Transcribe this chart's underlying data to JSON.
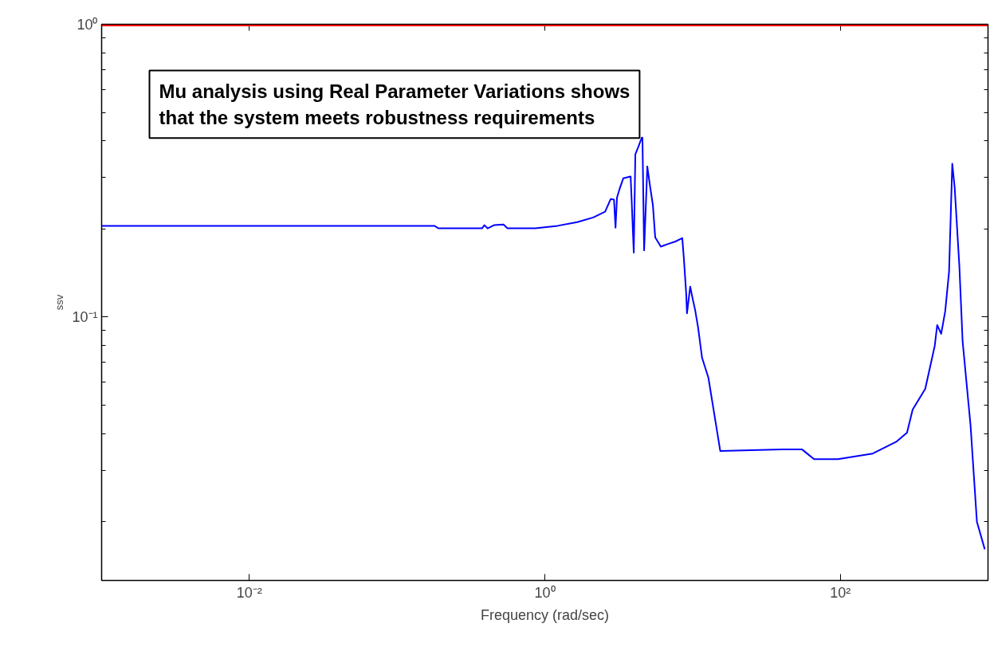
{
  "chart_data": {
    "type": "line",
    "xlabel": "Frequency (rad/sec)",
    "ylabel": "ssv",
    "log": "xy",
    "grid": false,
    "marker": "none",
    "line_style": "solid",
    "annotations": [
      "Mu analysis using Real Parameter Variations shows\nthat the system meets robustness requirements"
    ],
    "xlim": [
      0.001,
      1000
    ],
    "xticks": [
      {
        "value": 0.01,
        "label": "10⁻²"
      },
      {
        "value": 1,
        "label": "10⁰"
      },
      {
        "value": 100,
        "label": "10²"
      }
    ],
    "ylim": [
      0.0126,
      1
    ],
    "yticks": [
      {
        "value": 0.1,
        "label": "10⁻¹"
      },
      {
        "value": 1,
        "label": "10⁰"
      }
    ],
    "ref_lines": [
      {
        "axis": "y",
        "value": 0.99,
        "label": null,
        "color": "#ff0000"
      }
    ],
    "series": [
      {
        "color": "#0000ff",
        "x": [
          0.001,
          0.179,
          0.19,
          0.376,
          0.39,
          0.41,
          0.453,
          0.525,
          0.559,
          0.861,
          1.22,
          1.66,
          2.13,
          2.56,
          2.79,
          2.94,
          3.01,
          3.08,
          3.2,
          3.4,
          3.81,
          3.86,
          4.0,
          4.1,
          4.31,
          4.53,
          4.58,
          4.64,
          4.7,
          4.88,
          4.94,
          5.13,
          5.39,
          5.59,
          6.1,
          6.9,
          7.62,
          8.52,
          8.73,
          9.06,
          9.17,
          9.64,
          10,
          10.4,
          10.9,
          11.6,
          12.8,
          15.4,
          40.5,
          55.2,
          66.5,
          96.4,
          166,
          241,
          283,
          309,
          376,
          436,
          453,
          482,
          513,
          545,
          573,
          595,
          640,
          673,
          762,
          841,
          951
        ],
        "values": [
          0.205,
          0.205,
          0.201,
          0.201,
          0.206,
          0.201,
          0.206,
          0.207,
          0.201,
          0.201,
          0.205,
          0.211,
          0.219,
          0.229,
          0.253,
          0.252,
          0.202,
          0.256,
          0.273,
          0.298,
          0.302,
          0.26,
          0.166,
          0.36,
          0.383,
          0.41,
          0.41,
          0.263,
          0.169,
          0.276,
          0.327,
          0.285,
          0.241,
          0.187,
          0.174,
          0.178,
          0.181,
          0.186,
          0.159,
          0.12,
          0.103,
          0.127,
          0.116,
          0.106,
          0.0922,
          0.0726,
          0.0621,
          0.0349,
          0.0353,
          0.0353,
          0.0327,
          0.0327,
          0.0342,
          0.0376,
          0.0403,
          0.0483,
          0.0569,
          0.0798,
          0.0939,
          0.0877,
          0.1045,
          0.143,
          0.334,
          0.276,
          0.149,
          0.0828,
          0.0426,
          0.02,
          0.0161
        ]
      }
    ]
  }
}
